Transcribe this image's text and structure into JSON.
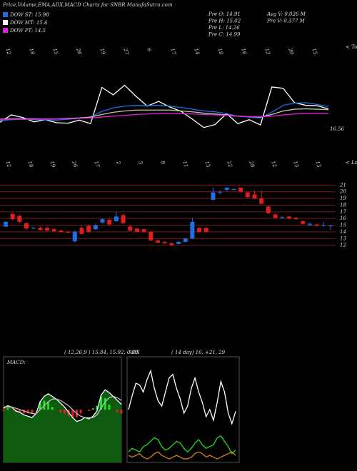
{
  "chart_data": [
    {
      "type": "candlestick",
      "title": "Price,Volume,EMA,ADX,MACD Charts for SNBR MunafaSutra.com",
      "legend": [
        {
          "name": "DOW ST: 15.98",
          "color": "#1e6fe6"
        },
        {
          "name": "DOW MT: 15.6",
          "color": "#ffffff"
        },
        {
          "name": "DOW PT: 14.5",
          "color": "#e01ee0"
        }
      ],
      "info": [
        "Pre  O: 14.91",
        "Pre  H: 15.02",
        "Pre  L: 14.26",
        "Pre  C: 14.99",
        "Avg  V: 0.026  M",
        "Pre  V: 0.377  M"
      ],
      "top_labels": [
        "12",
        "18",
        "15",
        "26",
        "19",
        "27",
        "6",
        "17",
        "14",
        "18",
        "16",
        "13",
        "20",
        "15"
      ],
      "top_tag": "< Tops",
      "bottom_labels": [
        "12",
        "18",
        "19",
        "26",
        "17",
        "2",
        "3",
        "8",
        "11",
        "13",
        "22",
        "28",
        "12",
        "13",
        "13"
      ],
      "bottom_tag": "< Lows",
      "ylim": [
        11,
        22
      ],
      "yticks": [
        21,
        20,
        19,
        18,
        17,
        16,
        15,
        14,
        13,
        12
      ],
      "up_color": "#1e6fe6",
      "down_color": "#e01e1e",
      "grid_color": "#7a1a1a",
      "open": [
        14.8,
        16.7,
        16.4,
        15.3,
        14.5,
        14.6,
        14.6,
        14.4,
        14.2,
        14.0,
        12.6,
        14.6,
        14.9,
        14.4,
        15.4,
        15.8,
        15.6,
        16.5,
        14.8,
        14.5,
        14.4,
        14.0,
        12.7,
        12.5,
        12.3,
        12.2,
        12.5,
        13.0,
        14.6,
        14.6,
        18.8,
        19.9,
        20.3,
        20.3,
        20.6,
        19.9,
        19.6,
        19.0,
        17.8,
        16.6,
        16.1,
        16.3,
        16.1,
        15.6,
        15.0,
        15.1,
        14.9,
        14.91
      ],
      "high": [
        15.6,
        16.9,
        16.6,
        15.4,
        14.8,
        14.8,
        14.8,
        14.6,
        14.3,
        14.1,
        14.2,
        14.8,
        15.1,
        15.2,
        16.0,
        16.0,
        17.0,
        16.7,
        14.9,
        14.6,
        14.5,
        14.1,
        12.8,
        12.6,
        12.4,
        12.6,
        13.1,
        16.1,
        14.7,
        14.7,
        20.6,
        20.2,
        20.7,
        20.5,
        20.7,
        20.0,
        20.2,
        20.2,
        17.9,
        16.7,
        16.4,
        16.4,
        16.2,
        15.7,
        15.4,
        15.2,
        15.5,
        15.02
      ],
      "low": [
        14.7,
        15.7,
        15.3,
        14.3,
        14.4,
        14.2,
        14.1,
        14.0,
        13.9,
        13.8,
        12.4,
        13.6,
        13.9,
        14.3,
        15.3,
        15.0,
        15.5,
        15.2,
        14.1,
        13.9,
        13.9,
        12.6,
        12.3,
        12.2,
        11.9,
        12.1,
        12.4,
        12.9,
        13.9,
        13.9,
        18.7,
        19.6,
        20.1,
        20.2,
        19.9,
        19.1,
        18.9,
        18.1,
        16.7,
        16.0,
        16.0,
        15.9,
        15.8,
        15.1,
        14.9,
        14.8,
        14.8,
        14.26
      ],
      "close": [
        15.5,
        15.9,
        15.5,
        14.5,
        14.6,
        14.3,
        14.2,
        14.1,
        14.0,
        13.9,
        14.0,
        13.7,
        14.0,
        15.0,
        15.9,
        15.1,
        16.3,
        15.3,
        14.2,
        14.0,
        14.0,
        12.7,
        12.4,
        12.3,
        12.0,
        12.5,
        13.0,
        15.5,
        14.0,
        14.0,
        19.9,
        20.0,
        20.6,
        20.4,
        20.0,
        19.2,
        19.0,
        18.2,
        16.8,
        16.1,
        16.2,
        16.0,
        15.9,
        15.2,
        15.2,
        14.9,
        15.0,
        14.99
      ]
    },
    {
      "type": "line",
      "label": "16.56",
      "ylim": [
        8,
        26
      ],
      "series": [
        {
          "name": "price",
          "color": "#ffffff",
          "values": [
            13.5,
            15.2,
            14.6,
            13.6,
            14.1,
            13.4,
            13.3,
            14.0,
            13.2,
            21.5,
            19.8,
            22.0,
            19.5,
            17.2,
            18.3,
            17.0,
            16.0,
            14.2,
            12.3,
            13.0,
            15.5,
            13.2,
            14.1,
            12.9,
            21.6,
            21.3,
            18.0,
            17.4,
            17.3,
            16.6
          ]
        },
        {
          "name": "ema-fast",
          "color": "#1e6fe6",
          "values": [
            13.9,
            14.1,
            14.2,
            14.1,
            14.1,
            14.0,
            14.2,
            14.4,
            14.7,
            16.0,
            16.8,
            17.2,
            17.4,
            17.3,
            17.4,
            17.2,
            16.9,
            16.5,
            16.1,
            15.9,
            15.5,
            14.9,
            14.7,
            14.5,
            15.8,
            17.4,
            17.9,
            18.0,
            17.6,
            17.1
          ]
        },
        {
          "name": "ema-mid",
          "color": "#c8c8a0",
          "values": [
            14.2,
            14.3,
            14.3,
            14.3,
            14.3,
            14.3,
            14.4,
            14.5,
            14.7,
            15.3,
            15.8,
            16.1,
            16.3,
            16.3,
            16.3,
            16.3,
            16.1,
            15.9,
            15.6,
            15.4,
            15.2,
            14.9,
            14.8,
            14.7,
            15.3,
            16.1,
            16.5,
            16.6,
            16.5,
            16.4
          ]
        },
        {
          "name": "ema-slow",
          "color": "#e01ee0",
          "values": [
            14.1,
            14.2,
            14.2,
            14.2,
            14.3,
            14.3,
            14.3,
            14.4,
            14.5,
            14.7,
            14.9,
            15.1,
            15.3,
            15.4,
            15.5,
            15.5,
            15.5,
            15.4,
            15.3,
            15.2,
            15.1,
            14.9,
            14.8,
            14.8,
            14.9,
            15.2,
            15.4,
            15.5,
            15.5,
            15.5
          ]
        }
      ]
    },
    {
      "type": "macd",
      "label": "MACD:",
      "params": "( 12,26,9 ) 15.84,  15.92,  0.08",
      "ylim": [
        -4,
        4
      ],
      "bg_color": "#0e5a0e",
      "series": [
        {
          "name": "macd",
          "color": "#ffffff",
          "values": [
            0.1,
            0.3,
            0.2,
            -0.1,
            -0.2,
            -0.4,
            -0.5,
            -0.6,
            -0.3,
            0.6,
            1.0,
            1.2,
            1.0,
            0.8,
            0.5,
            0.2,
            -0.2,
            -0.6,
            -0.9,
            -0.8,
            -0.6,
            -0.7,
            -0.5,
            -0.1,
            1.1,
            1.5,
            1.3,
            1.0,
            0.7,
            0.4
          ]
        },
        {
          "name": "signal",
          "color": "#bbbbbb",
          "values": [
            0.2,
            0.2,
            0.2,
            0.1,
            0.0,
            -0.1,
            -0.2,
            -0.3,
            -0.3,
            0.0,
            0.3,
            0.6,
            0.8,
            0.8,
            0.7,
            0.5,
            0.3,
            0.0,
            -0.3,
            -0.5,
            -0.6,
            -0.6,
            -0.6,
            -0.4,
            0.1,
            0.6,
            0.9,
            1.0,
            0.9,
            0.7
          ]
        }
      ],
      "hist_up_color": "#22dd22",
      "hist_down_color": "#dd2222"
    },
    {
      "type": "adx",
      "label": "ADX",
      "params": "( 14  day) 16,  +21,  29",
      "ylim": [
        0,
        60
      ],
      "series": [
        {
          "name": "adx",
          "color": "#ffffff",
          "values": [
            30,
            38,
            45,
            44,
            40,
            47,
            52,
            42,
            35,
            32,
            40,
            48,
            50,
            42,
            36,
            28,
            32,
            42,
            48,
            40,
            34,
            26,
            30,
            24,
            34,
            46,
            40,
            28,
            22,
            29
          ]
        },
        {
          "name": "plus-di",
          "color": "#22dd22",
          "values": [
            6,
            8,
            7,
            6,
            9,
            10,
            12,
            14,
            13,
            9,
            7,
            8,
            10,
            12,
            11,
            8,
            6,
            8,
            11,
            13,
            10,
            8,
            9,
            10,
            14,
            15,
            12,
            9,
            5,
            7
          ]
        },
        {
          "name": "minus-di",
          "color": "#d08020",
          "values": [
            4,
            3,
            4,
            5,
            3,
            2,
            3,
            5,
            6,
            4,
            3,
            2,
            3,
            4,
            3,
            2,
            2,
            3,
            5,
            6,
            5,
            3,
            4,
            3,
            2,
            3,
            4,
            5,
            6,
            4
          ]
        }
      ]
    }
  ]
}
